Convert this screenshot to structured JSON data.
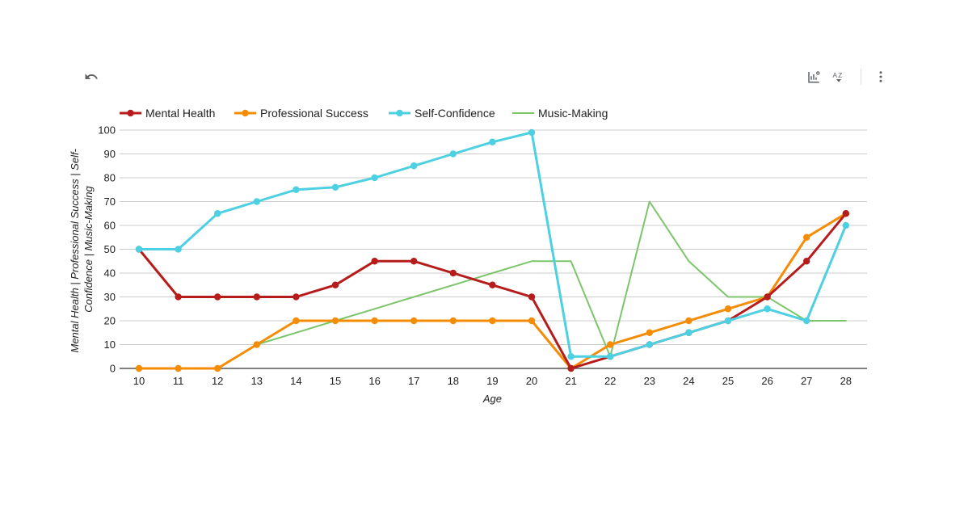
{
  "toolbar": {
    "undo_icon": "undo-icon",
    "insights_icon": "chart-insights-icon",
    "sort_icon": "sort-az-icon",
    "more_icon": "more-vert-icon"
  },
  "chart_data": {
    "type": "line",
    "title": "",
    "xlabel": "Age",
    "ylabel_lines": [
      "Mental Health | Professional Success | Self-",
      "Confidence | Music-Making"
    ],
    "x": [
      10,
      11,
      12,
      13,
      14,
      15,
      16,
      17,
      18,
      19,
      20,
      21,
      22,
      23,
      24,
      25,
      26,
      27,
      28
    ],
    "ylim": [
      0,
      100
    ],
    "yticks": [
      0,
      10,
      20,
      30,
      40,
      50,
      60,
      70,
      80,
      90,
      100
    ],
    "grid": true,
    "legend_position": "top",
    "series": [
      {
        "name": "Mental Health",
        "color": "#b71c1c",
        "markers": true,
        "values": [
          50,
          30,
          30,
          30,
          30,
          35,
          45,
          45,
          40,
          35,
          30,
          0,
          5,
          10,
          15,
          20,
          30,
          45,
          65
        ]
      },
      {
        "name": "Professional Success",
        "color": "#f48c06",
        "markers": true,
        "values": [
          0,
          0,
          0,
          10,
          20,
          20,
          20,
          20,
          20,
          20,
          20,
          0,
          10,
          15,
          20,
          25,
          30,
          55,
          65
        ]
      },
      {
        "name": "Self-Confidence",
        "color": "#4dd0e1",
        "markers": true,
        "values": [
          50,
          50,
          65,
          70,
          75,
          76,
          80,
          85,
          90,
          95,
          99,
          5,
          5,
          10,
          15,
          20,
          25,
          20,
          60
        ]
      },
      {
        "name": "Music-Making",
        "color": "#7cc56b",
        "markers": false,
        "values": [
          null,
          null,
          0,
          10,
          15,
          20,
          25,
          30,
          35,
          40,
          45,
          45,
          5,
          70,
          45,
          30,
          30,
          20,
          20
        ]
      }
    ]
  }
}
